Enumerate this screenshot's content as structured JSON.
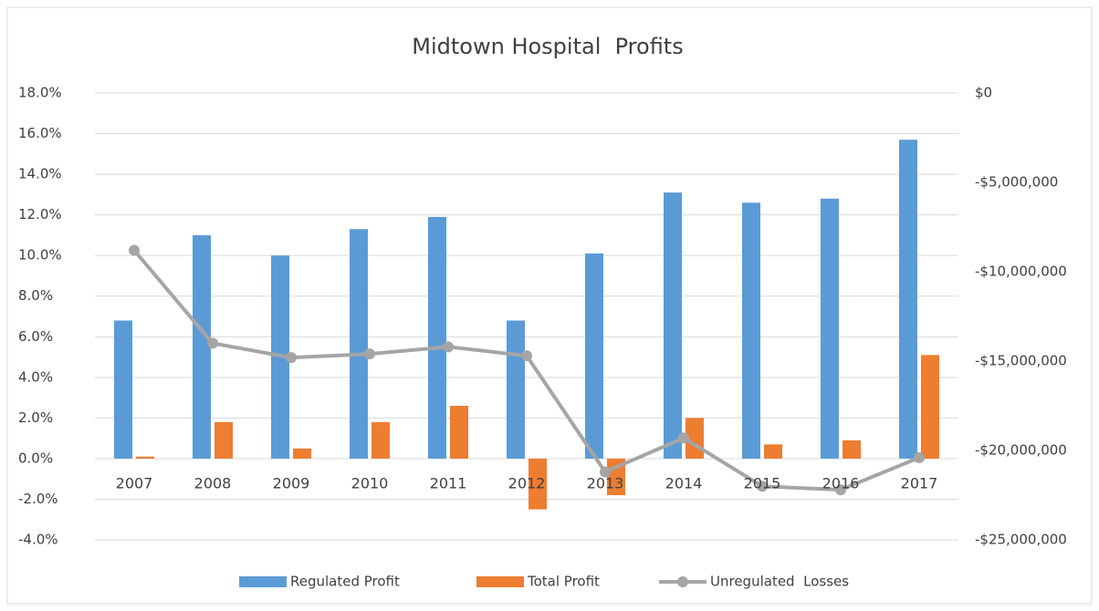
{
  "chart_data": {
    "type": "bar",
    "title": "Midtown Hospital  Profits",
    "categories": [
      "2007",
      "2008",
      "2009",
      "2010",
      "2011",
      "2012",
      "2013",
      "2014",
      "2015",
      "2016",
      "2017"
    ],
    "series": [
      {
        "name": "Regulated Profit",
        "color": "#5b9bd5",
        "type": "bar",
        "values": [
          6.8,
          11.0,
          10.0,
          11.3,
          11.9,
          6.8,
          10.1,
          13.1,
          12.6,
          12.8,
          15.7
        ]
      },
      {
        "name": "Total Profit",
        "color": "#ed7d31",
        "type": "bar",
        "values": [
          0.1,
          1.8,
          0.5,
          1.8,
          2.6,
          -2.5,
          -1.8,
          2.0,
          0.7,
          0.9,
          5.1
        ]
      },
      {
        "name": "Unregulated  Losses",
        "color": "#a5a5a5",
        "type": "line",
        "axis": "y2",
        "values": [
          -8800000,
          -14000000,
          -14800000,
          -14600000,
          -14200000,
          -14700000,
          -21200000,
          -19300000,
          -22000000,
          -22200000,
          -20400000
        ]
      }
    ],
    "ylim": [
      -4,
      18
    ],
    "yticks": [
      {
        "value": -4,
        "label": "-4.0%"
      },
      {
        "value": -2,
        "label": "-2.0%"
      },
      {
        "value": 0,
        "label": "0.0%"
      },
      {
        "value": 2,
        "label": "2.0%"
      },
      {
        "value": 4,
        "label": "4.0%"
      },
      {
        "value": 6,
        "label": "6.0%"
      },
      {
        "value": 8,
        "label": "8.0%"
      },
      {
        "value": 10,
        "label": "10.0%"
      },
      {
        "value": 12,
        "label": "12.0%"
      },
      {
        "value": 14,
        "label": "14.0%"
      },
      {
        "value": 16,
        "label": "16.0%"
      },
      {
        "value": 18,
        "label": "18.0%"
      }
    ],
    "y2lim": [
      -25000000,
      0
    ],
    "y2ticks": [
      {
        "value": -25000000,
        "label": "-$25,000,000"
      },
      {
        "value": -20000000,
        "label": "-$20,000,000"
      },
      {
        "value": -15000000,
        "label": "-$15,000,000"
      },
      {
        "value": -10000000,
        "label": "-$10,000,000"
      },
      {
        "value": -5000000,
        "label": "-$5,000,000"
      },
      {
        "value": 0,
        "label": "$0"
      }
    ],
    "grid": true,
    "legend": "bottom"
  }
}
